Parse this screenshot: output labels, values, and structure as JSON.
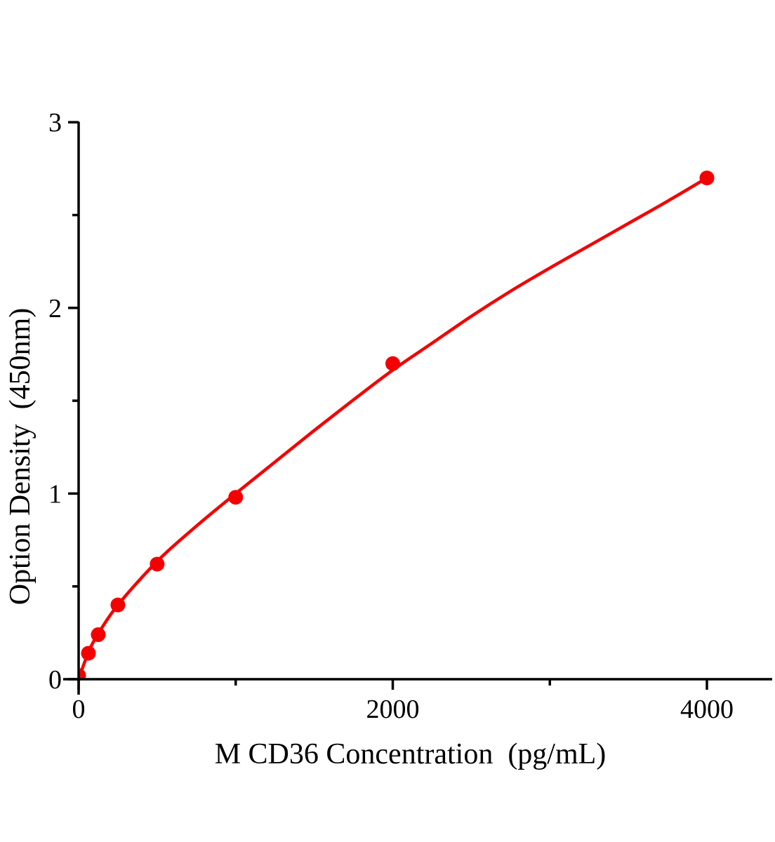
{
  "chart_data": {
    "type": "line",
    "description": "ELISA standard curve, red fitted curve with red circular data points on white background, black L-shaped axes",
    "title": "",
    "x_axis": {
      "label": "M CD36 Concentration（pg/mL）",
      "range": [
        0,
        4000
      ],
      "major_ticks": [
        0,
        2000,
        4000
      ],
      "major_tick_labels": [
        "0",
        "2000",
        "4000"
      ],
      "minor_ticks": [
        1000,
        3000
      ]
    },
    "y_axis": {
      "label": "Option Density（450nm）",
      "range": [
        0,
        3
      ],
      "major_ticks": [
        0,
        1,
        2,
        3
      ],
      "major_tick_labels": [
        "0",
        "1",
        "2",
        "3"
      ],
      "minor_ticks": [
        0.5,
        1.5,
        2.5
      ]
    },
    "series": [
      {
        "name": "standard-curve",
        "color": "#f40000",
        "marker": "filled-circle",
        "points": [
          {
            "x": 0,
            "y": 0.02
          },
          {
            "x": 62.5,
            "y": 0.14
          },
          {
            "x": 125,
            "y": 0.24
          },
          {
            "x": 250,
            "y": 0.4
          },
          {
            "x": 500,
            "y": 0.62
          },
          {
            "x": 1000,
            "y": 0.98
          },
          {
            "x": 2000,
            "y": 1.7
          },
          {
            "x": 4000,
            "y": 2.7
          }
        ],
        "fit_curve_samples": [
          {
            "x": 0,
            "y": 0.0
          },
          {
            "x": 62.5,
            "y": 0.145
          },
          {
            "x": 125,
            "y": 0.245
          },
          {
            "x": 250,
            "y": 0.4
          },
          {
            "x": 500,
            "y": 0.635
          },
          {
            "x": 750,
            "y": 0.825
          },
          {
            "x": 1000,
            "y": 1.0
          },
          {
            "x": 1250,
            "y": 1.17
          },
          {
            "x": 1500,
            "y": 1.34
          },
          {
            "x": 1750,
            "y": 1.505
          },
          {
            "x": 2000,
            "y": 1.665
          },
          {
            "x": 2250,
            "y": 1.81
          },
          {
            "x": 2500,
            "y": 1.955
          },
          {
            "x": 2750,
            "y": 2.09
          },
          {
            "x": 3000,
            "y": 2.215
          },
          {
            "x": 3250,
            "y": 2.335
          },
          {
            "x": 3500,
            "y": 2.455
          },
          {
            "x": 3750,
            "y": 2.575
          },
          {
            "x": 4000,
            "y": 2.7
          }
        ]
      }
    ],
    "colors": {
      "curve": "#f40000",
      "axis": "#000000",
      "background": "#ffffff"
    },
    "legend": null,
    "grid": false
  }
}
